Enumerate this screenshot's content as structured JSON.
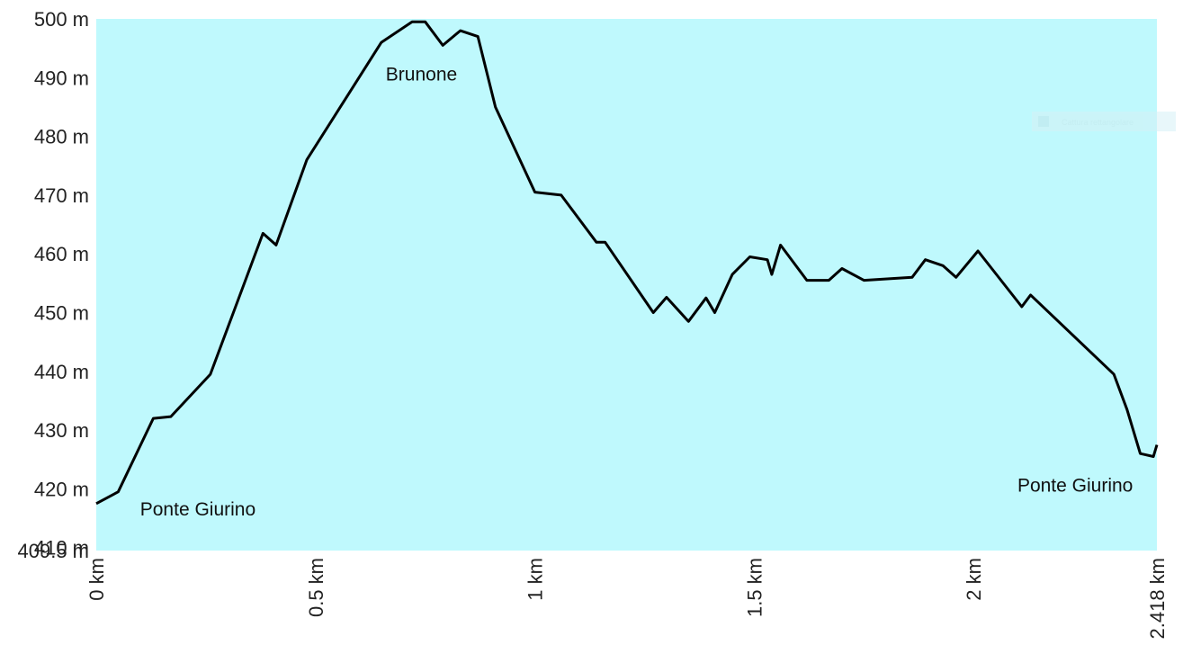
{
  "chart_data": {
    "type": "area",
    "title": "",
    "xlabel": "",
    "ylabel": "",
    "xlim": [
      0,
      2.418
    ],
    "ylim": [
      409.5,
      500
    ],
    "grid": false,
    "legend": "none",
    "y_ticks": [
      {
        "value": 409.5,
        "label": "409.5 m"
      },
      {
        "value": 410,
        "label": "410 m"
      },
      {
        "value": 420,
        "label": "420 m"
      },
      {
        "value": 430,
        "label": "430 m"
      },
      {
        "value": 440,
        "label": "440 m"
      },
      {
        "value": 450,
        "label": "450 m"
      },
      {
        "value": 460,
        "label": "460 m"
      },
      {
        "value": 470,
        "label": "470 m"
      },
      {
        "value": 480,
        "label": "480 m"
      },
      {
        "value": 490,
        "label": "490 m"
      },
      {
        "value": 500,
        "label": "500 m"
      }
    ],
    "x_ticks": [
      {
        "value": 0,
        "label": "0 km"
      },
      {
        "value": 0.5,
        "label": "0.5 km"
      },
      {
        "value": 1,
        "label": "1 km"
      },
      {
        "value": 1.5,
        "label": "1.5 km"
      },
      {
        "value": 2,
        "label": "2 km"
      },
      {
        "value": 2.418,
        "label": "2.418 km"
      }
    ],
    "annotations": [
      {
        "text": "Ponte Giurino",
        "x": 0.1,
        "y": 415.5
      },
      {
        "text": "Brunone",
        "x": 0.66,
        "y": 489.5
      },
      {
        "text": "Ponte Giurino",
        "x": 2.1,
        "y": 419.5
      }
    ],
    "series": [
      {
        "x": [
          0,
          0.05,
          0.13,
          0.17,
          0.26,
          0.38,
          0.41,
          0.48,
          0.65,
          0.72,
          0.75,
          0.79,
          0.83,
          0.87,
          0.91,
          1.0,
          1.06,
          1.14,
          1.16,
          1.27,
          1.3,
          1.35,
          1.39,
          1.41,
          1.45,
          1.49,
          1.53,
          1.54,
          1.56,
          1.62,
          1.67,
          1.7,
          1.75,
          1.86,
          1.89,
          1.93,
          1.96,
          2.01,
          2.11,
          2.13,
          2.32,
          2.35,
          2.38,
          2.41,
          2.418
        ],
        "values": [
          417.5,
          419.5,
          432,
          432.3,
          439.5,
          463.5,
          461.5,
          476,
          496,
          499.5,
          499.5,
          495.5,
          498,
          497,
          485,
          470.5,
          470,
          462,
          462,
          450,
          452.6,
          448.5,
          452.5,
          450,
          456.5,
          459.5,
          459,
          456.5,
          461.5,
          455.5,
          455.5,
          457.5,
          455.5,
          456,
          459,
          458,
          456,
          460.5,
          451,
          453,
          439.5,
          433.5,
          426,
          425.5,
          427.5
        ]
      }
    ],
    "colors": {
      "plot_background": "#bff9fd",
      "line": "#000000"
    }
  },
  "overlay": {
    "text": "Cattura rettangolare"
  }
}
